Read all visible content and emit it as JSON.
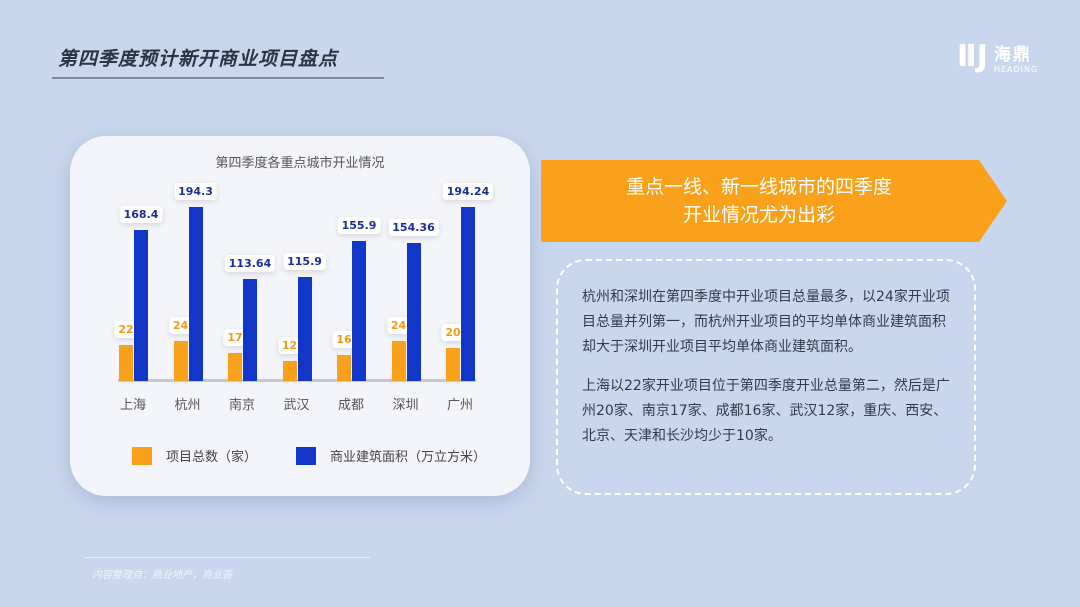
{
  "header": {
    "title": "第四季度预计新开商业项目盘点"
  },
  "logo": {
    "cn": "海鼎",
    "en": "HEADING"
  },
  "chart_data": {
    "type": "bar",
    "title": "第四季度各重点城市开业情况",
    "categories": [
      "上海",
      "杭州",
      "南京",
      "武汉",
      "成都",
      "深圳",
      "广州"
    ],
    "series": [
      {
        "name": "项目总数（家）",
        "color": "#f9a11b",
        "values": [
          22,
          24,
          17,
          12,
          16,
          24,
          20
        ],
        "labels": [
          "22",
          "24",
          "17",
          "12",
          "16",
          "24",
          "20"
        ]
      },
      {
        "name": "商业建筑面积（万立方米）",
        "color": "#1236c8",
        "values": [
          168.4,
          194.3,
          113.64,
          115.9,
          155.9,
          154.36,
          194.24
        ],
        "labels": [
          "168.4",
          "194.3",
          "113.64",
          "115.9",
          "155.9",
          "154.36",
          "194.24"
        ]
      }
    ],
    "legend": "bottom",
    "grid": false
  },
  "banner": {
    "line1": "重点一线、新一线城市的四季度",
    "line2": "开业情况尤为出彩"
  },
  "note": {
    "p1": "杭州和深圳在第四季度中开业项目总量最多，以24家开业项目总量并列第一，而杭州开业项目的平均单体商业建筑面积却大于深圳开业项目平均单体商业建筑面积。",
    "p2": "上海以22家开业项目位于第四季度开业总量第二，然后是广州20家、南京17家、成都16家、武汉12家，重庆、西安、北京、天津和长沙均少于10家。"
  },
  "footer": {
    "source": "内容整理自：商业地产，商业荟"
  }
}
